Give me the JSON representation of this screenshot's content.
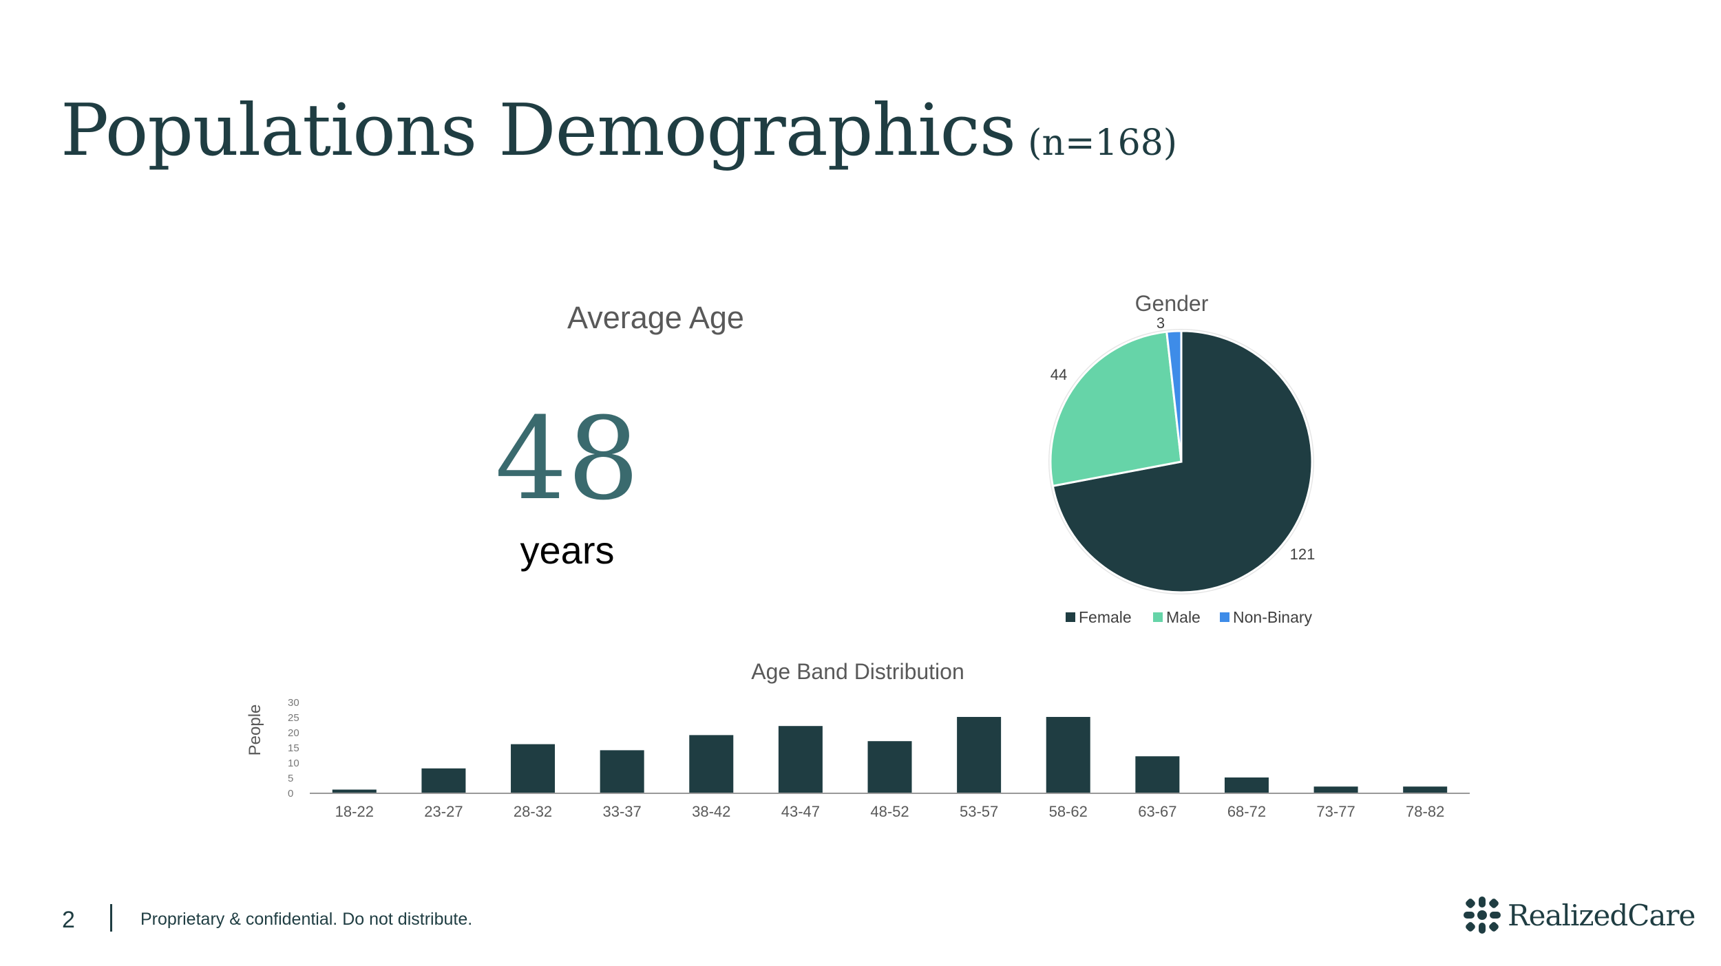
{
  "header": {
    "title": "Populations Demographics",
    "subtitle": "(n=168)"
  },
  "average_age": {
    "label": "Average Age",
    "value": "48",
    "unit": "years"
  },
  "footer": {
    "page_number": "2",
    "notice": "Proprietary & confidential. Do not distribute.",
    "logo_text": "RealizedCare"
  },
  "colors": {
    "primary": "#1f3d42",
    "female": "#1f3d42",
    "male": "#66d4a8",
    "non_binary": "#3e8ce8"
  },
  "chart_data": [
    {
      "type": "pie",
      "title": "Gender",
      "legend_position": "bottom",
      "slices": [
        {
          "name": "Female",
          "value": 121,
          "color": "#1f3d42"
        },
        {
          "name": "Male",
          "value": 44,
          "color": "#66d4a8"
        },
        {
          "name": "Non-Binary",
          "value": 3,
          "color": "#3e8ce8"
        }
      ]
    },
    {
      "type": "bar",
      "title": "Age Band Distribution",
      "xlabel": "",
      "ylabel": "People",
      "ylim": [
        0,
        30
      ],
      "yticks": [
        0,
        5,
        10,
        15,
        20,
        25,
        30
      ],
      "categories": [
        "18-22",
        "23-27",
        "28-32",
        "33-37",
        "38-42",
        "43-47",
        "48-52",
        "53-57",
        "58-62",
        "63-67",
        "68-72",
        "73-77",
        "78-82"
      ],
      "values": [
        1,
        8,
        16,
        14,
        19,
        22,
        17,
        25,
        25,
        12,
        5,
        2,
        2
      ],
      "color": "#1f3d42",
      "grid": false
    }
  ]
}
